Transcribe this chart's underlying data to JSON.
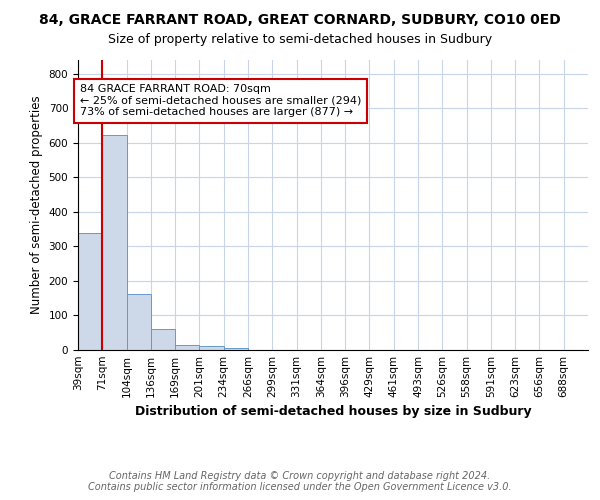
{
  "title": "84, GRACE FARRANT ROAD, GREAT CORNARD, SUDBURY, CO10 0ED",
  "subtitle": "Size of property relative to semi-detached houses in Sudbury",
  "xlabel": "Distribution of semi-detached houses by size in Sudbury",
  "ylabel": "Number of semi-detached properties",
  "bin_labels": [
    "39sqm",
    "71sqm",
    "104sqm",
    "136sqm",
    "169sqm",
    "201sqm",
    "234sqm",
    "266sqm",
    "299sqm",
    "331sqm",
    "364sqm",
    "396sqm",
    "429sqm",
    "461sqm",
    "493sqm",
    "526sqm",
    "558sqm",
    "591sqm",
    "623sqm",
    "656sqm",
    "688sqm"
  ],
  "bar_heights": [
    339,
    624,
    162,
    60,
    15,
    12,
    6,
    0,
    0,
    0,
    0,
    0,
    0,
    0,
    0,
    0,
    0,
    0,
    0,
    0,
    0
  ],
  "bar_color": "#cdd8e8",
  "bar_edge_color": "#6699cc",
  "ylim": [
    0,
    840
  ],
  "yticks": [
    0,
    100,
    200,
    300,
    400,
    500,
    600,
    700,
    800
  ],
  "property_line_x": 1.0,
  "property_line_color": "#cc0000",
  "annotation_text": "84 GRACE FARRANT ROAD: 70sqm\n← 25% of semi-detached houses are smaller (294)\n73% of semi-detached houses are larger (877) →",
  "annotation_box_color": "#cc0000",
  "footer_line1": "Contains HM Land Registry data © Crown copyright and database right 2024.",
  "footer_line2": "Contains public sector information licensed under the Open Government Licence v3.0.",
  "bg_color": "#ffffff",
  "grid_color": "#c8d4e8",
  "title_fontsize": 10,
  "subtitle_fontsize": 9,
  "axis_label_fontsize": 8.5,
  "tick_fontsize": 7.5,
  "annotation_fontsize": 8,
  "footer_fontsize": 7
}
